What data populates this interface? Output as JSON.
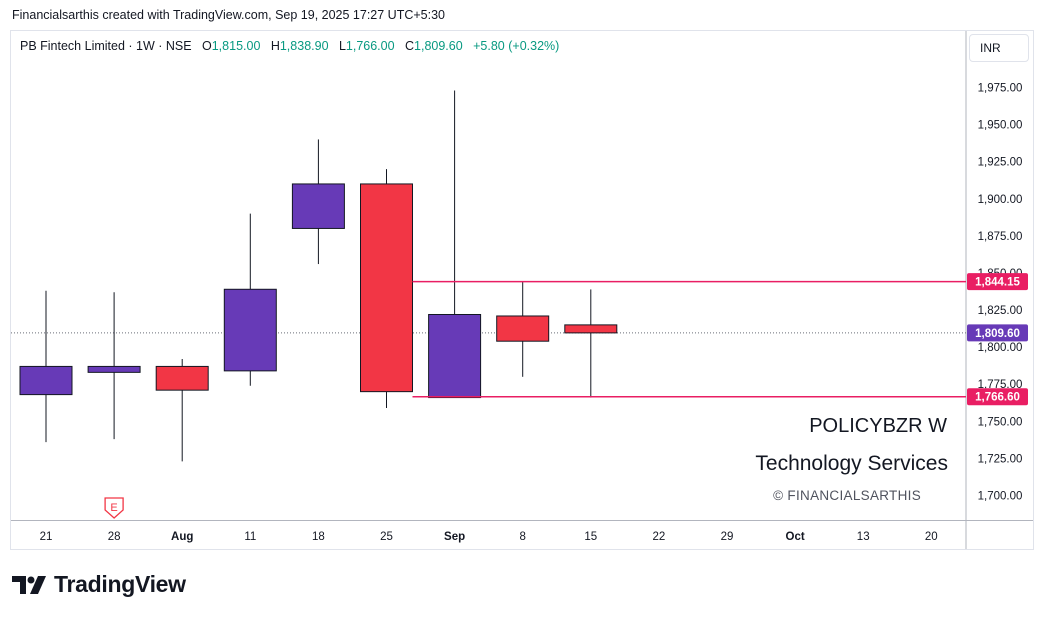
{
  "header": {
    "created_note": "Financialsarthis created with TradingView.com, Sep 19, 2025 17:27 UTC+5:30"
  },
  "legend": {
    "symbol": "PB Fintech Limited · 1W · NSE",
    "open_label": "O",
    "open": "1,815.00",
    "high_label": "H",
    "high": "1,838.90",
    "low_label": "L",
    "low": "1,766.00",
    "close_label": "C",
    "close": "1,809.60",
    "change": "+5.80 (+0.32%)"
  },
  "currency_label": "INR",
  "watermark": {
    "symbol_line": "POLICYBZR W",
    "sector_line": "Technology Services",
    "copyright": "© FINANCIALSARTHIS"
  },
  "brand": {
    "name": "TradingView"
  },
  "earnings_marker": {
    "label": "E",
    "at": "28"
  },
  "colors": {
    "bull": "#673ab7",
    "bear": "#f23645",
    "level_line": "#e91e63",
    "current_price_bg": "#673ab7"
  },
  "chart_data": {
    "type": "candlestick",
    "timeframe": "1W",
    "y_ticks": [
      1700,
      1725,
      1750,
      1775,
      1800,
      1825,
      1850,
      1875,
      1900,
      1925,
      1950,
      1975
    ],
    "y_tick_labels": [
      "1,700.00",
      "1,725.00",
      "1,750.00",
      "1,775.00",
      "1,800.00",
      "1,825.00",
      "1,850.00",
      "1,875.00",
      "1,900.00",
      "1,925.00",
      "1,950.00",
      "1,975.00"
    ],
    "ylim": [
      1680,
      2000
    ],
    "x_labels": [
      "21",
      "28",
      "Aug",
      "11",
      "18",
      "25",
      "Sep",
      "8",
      "15",
      "22",
      "29",
      "Oct",
      "13",
      "20"
    ],
    "candles": [
      {
        "x": "21",
        "open": 1768,
        "high": 1838,
        "low": 1736,
        "close": 1787
      },
      {
        "x": "28",
        "open": 1783,
        "high": 1837,
        "low": 1738,
        "close": 1787
      },
      {
        "x": "Aug",
        "open": 1787,
        "high": 1792,
        "low": 1723,
        "close": 1771
      },
      {
        "x": "11",
        "open": 1784,
        "high": 1890,
        "low": 1774,
        "close": 1839
      },
      {
        "x": "18",
        "open": 1880,
        "high": 1940,
        "low": 1856,
        "close": 1910
      },
      {
        "x": "25",
        "open": 1910,
        "high": 1920,
        "low": 1759,
        "close": 1770
      },
      {
        "x": "Sep",
        "open": 1766,
        "high": 1973,
        "low": 1766,
        "close": 1822
      },
      {
        "x": "8",
        "open": 1821,
        "high": 1844,
        "low": 1780,
        "close": 1804
      },
      {
        "x": "15",
        "open": 1815,
        "high": 1838.9,
        "low": 1766,
        "close": 1809.6
      }
    ],
    "levels": [
      {
        "value": 1844.15,
        "label": "1,844.15",
        "from": "25"
      },
      {
        "value": 1766.6,
        "label": "1,766.60",
        "from": "25"
      }
    ],
    "current_price": {
      "value": 1809.6,
      "label": "1,809.60"
    }
  }
}
